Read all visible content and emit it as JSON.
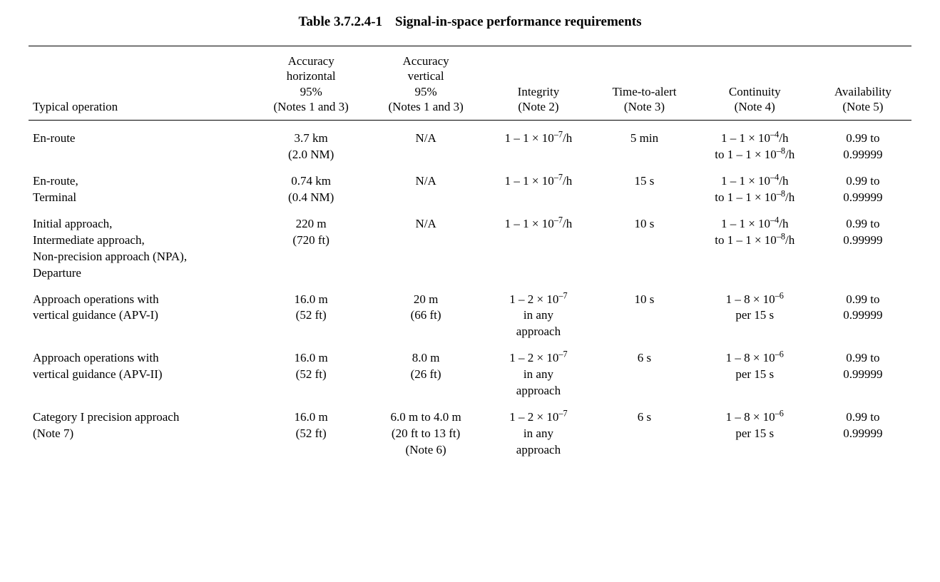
{
  "caption_number": "Table 3.7.2.4-1",
  "caption_title": "Signal-in-space performance requirements",
  "col_widths_pct": [
    25.5,
    13,
    13,
    12.5,
    11.5,
    13.5,
    11
  ],
  "columns": [
    "Typical operation",
    "Accuracy\nhorizontal\n95%\n(Notes 1 and 3)",
    "Accuracy\nvertical\n95%\n(Notes 1 and 3)",
    "Integrity\n(Note 2)",
    "Time-to-alert\n(Note 3)",
    "Continuity\n(Note 4)",
    "Availability\n(Note 5)"
  ],
  "rows": [
    {
      "op": "En-route",
      "acc_h": "3.7 km\n(2.0 NM)",
      "acc_v": "N/A",
      "integrity": "1 – 1 × 10<sup>–7</sup>/h",
      "tta": "5 min",
      "continuity": "1 – 1 × 10<sup>–4</sup>/h\nto 1 – 1 × 10<sup>–8</sup>/h",
      "avail": "0.99 to\n0.99999"
    },
    {
      "op": "En-route,\nTerminal",
      "acc_h": "0.74 km\n(0.4 NM)",
      "acc_v": "N/A",
      "integrity": "1 – 1 × 10<sup>–7</sup>/h",
      "tta": "15 s",
      "continuity": "1 – 1 × 10<sup>–4</sup>/h\nto 1 – 1 × 10<sup>–8</sup>/h",
      "avail": "0.99 to\n0.99999"
    },
    {
      "op": "Initial approach,\nIntermediate approach,\nNon-precision approach (NPA),\nDeparture",
      "acc_h": "220 m\n(720 ft)",
      "acc_v": "N/A",
      "integrity": "1 – 1 × 10<sup>–7</sup>/h",
      "tta": "10 s",
      "continuity": "1 – 1 × 10<sup>–4</sup>/h\nto 1 – 1 × 10<sup>–8</sup>/h",
      "avail": "0.99 to\n0.99999"
    },
    {
      "op": "Approach operations with\nvertical guidance (APV-I)",
      "acc_h": "16.0 m\n(52 ft)",
      "acc_v": "20 m\n(66 ft)",
      "integrity": "1 – 2 × 10<sup>–7</sup>\nin any\napproach",
      "tta": "10 s",
      "continuity": "1 – 8 × 10<sup>–6</sup>\nper 15 s",
      "avail": "0.99 to\n0.99999"
    },
    {
      "op": "Approach operations with\nvertical guidance (APV-II)",
      "acc_h": "16.0 m\n(52 ft)",
      "acc_v": "8.0 m\n(26 ft)",
      "integrity": "1 – 2 × 10<sup>–7</sup>\nin any\napproach",
      "tta": "6 s",
      "continuity": "1 – 8 × 10<sup>–6</sup>\nper 15 s",
      "avail": "0.99 to\n0.99999"
    },
    {
      "op": "Category I precision approach\n(Note 7)",
      "acc_h": "16.0 m\n(52 ft)",
      "acc_v": "6.0 m to 4.0 m\n(20 ft to 13 ft)\n(Note 6)",
      "integrity": "1 – 2 × 10<sup>–7</sup>\nin any\napproach",
      "tta": "6 s",
      "continuity": "1 – 8 × 10<sup>–6</sup>\nper 15 s",
      "avail": "0.99 to\n0.99999"
    }
  ]
}
